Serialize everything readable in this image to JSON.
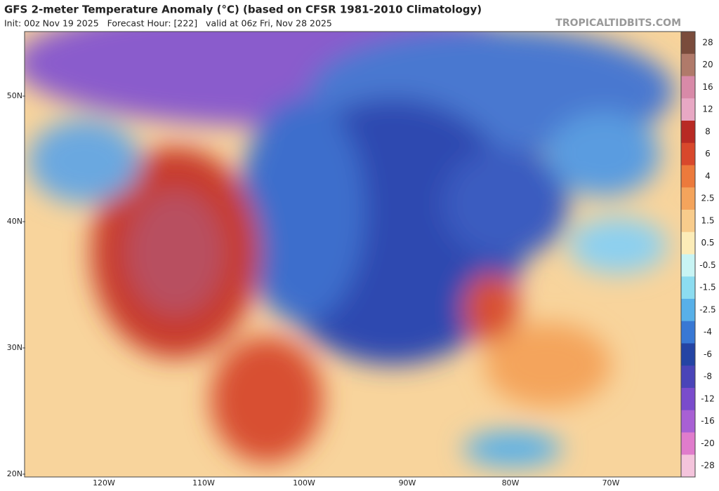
{
  "header": {
    "title": "GFS 2-meter Temperature Anomaly (°C) (based on CFSR 1981-2010 Climatology)",
    "subtitle": "Init: 00z Nov 19 2025   Forecast Hour: [222]   valid at 06z Fri, Nov 28 2025",
    "site": "TROPICALTIDBITS.COM"
  },
  "map": {
    "lat_labels": [
      "50N",
      "40N",
      "30N",
      "20N"
    ],
    "lon_labels": [
      "120W",
      "110W",
      "100W",
      "90W",
      "80W",
      "70W"
    ]
  },
  "colorbar": {
    "labels": [
      28,
      20,
      16,
      12,
      8,
      6,
      4,
      2.5,
      1.5,
      0.5,
      -0.5,
      -1.5,
      -2.5,
      -4,
      -6,
      -8,
      -12,
      -16,
      -20,
      -28
    ],
    "colors": [
      "#7a4c3c",
      "#b07a6a",
      "#d88aa8",
      "#e8a8c4",
      "#b82a24",
      "#d8482c",
      "#ec7a3c",
      "#f4a45c",
      "#f8cc8c",
      "#fcecb8",
      "#c8f4f4",
      "#8cdcf0",
      "#58b0e8",
      "#3878d4",
      "#2444a4",
      "#4a44b8",
      "#7a4ccc",
      "#a860d4",
      "#e07ccc",
      "#f4c4dc"
    ]
  }
}
